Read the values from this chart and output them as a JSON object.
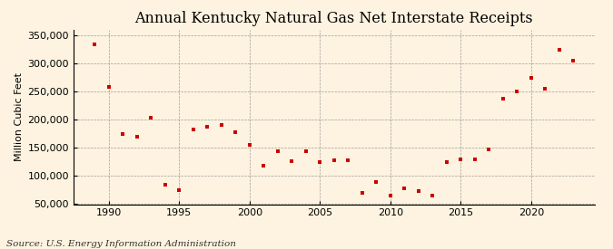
{
  "title": "Annual Kentucky Natural Gas Net Interstate Receipts",
  "ylabel": "Million Cubic Feet",
  "source": "Source: U.S. Energy Information Administration",
  "background_color": "#fdf3e0",
  "marker_color": "#cc0000",
  "years": [
    1989,
    1990,
    1991,
    1992,
    1993,
    1994,
    1995,
    1996,
    1997,
    1998,
    1999,
    2000,
    2001,
    2002,
    2003,
    2004,
    2005,
    2006,
    2007,
    2008,
    2009,
    2010,
    2011,
    2012,
    2013,
    2014,
    2015,
    2016,
    2017,
    2018,
    2019,
    2020,
    2021,
    2022,
    2023
  ],
  "values": [
    335000,
    258000,
    175000,
    170000,
    203000,
    85000,
    75000,
    183000,
    187000,
    191000,
    178000,
    155000,
    118000,
    145000,
    127000,
    145000,
    125000,
    128000,
    128000,
    70000,
    90000,
    65000,
    78000,
    73000,
    65000,
    125000,
    130000,
    130000,
    148000,
    238000,
    250000,
    275000,
    255000,
    325000,
    305000
  ],
  "xlim": [
    1987.5,
    2024.5
  ],
  "ylim": [
    50000,
    360000
  ],
  "yticks": [
    50000,
    100000,
    150000,
    200000,
    250000,
    300000,
    350000
  ],
  "xticks": [
    1990,
    1995,
    2000,
    2005,
    2010,
    2015,
    2020
  ],
  "title_fontsize": 11.5,
  "label_fontsize": 8,
  "source_fontsize": 7.5,
  "tick_fontsize": 8
}
